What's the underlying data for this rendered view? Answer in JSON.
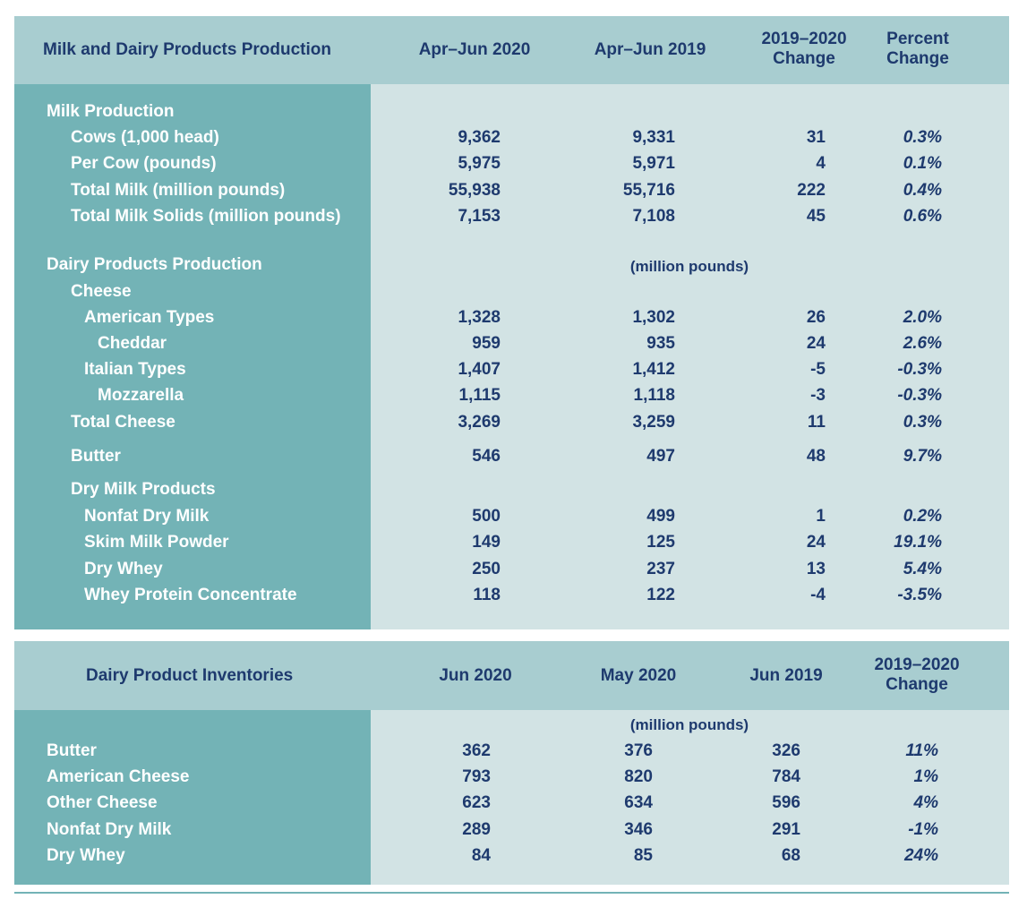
{
  "production": {
    "headers": {
      "title": "Milk and Dairy Products Production",
      "col1": "Apr–Jun 2020",
      "col2": "Apr–Jun 2019",
      "col3_line1": "2019–2020",
      "col3_line2": "Change",
      "col4_line1": "Percent",
      "col4_line2": "Change"
    },
    "milk_section": "Milk Production",
    "milk_rows": [
      {
        "label": "Cows (1,000 head)",
        "v2020": "9,362",
        "v2019": "9,331",
        "change": "31",
        "pct": "0.3%"
      },
      {
        "label": "Per Cow (pounds)",
        "v2020": "5,975",
        "v2019": "5,971",
        "change": "4",
        "pct": "0.1%"
      },
      {
        "label": "Total Milk (million pounds)",
        "v2020": "55,938",
        "v2019": "55,716",
        "change": "222",
        "pct": "0.4%"
      },
      {
        "label": "Total Milk Solids (million pounds)",
        "v2020": "7,153",
        "v2019": "7,108",
        "change": "45",
        "pct": "0.6%"
      }
    ],
    "dairy_section": "Dairy Products Production",
    "dairy_unit": "(million pounds)",
    "cheese_label": "Cheese",
    "cheese_rows": [
      {
        "label": "American Types",
        "v2020": "1,328",
        "v2019": "1,302",
        "change": "26",
        "pct": "2.0%"
      },
      {
        "label": "Cheddar",
        "v2020": "959",
        "v2019": "935",
        "change": "24",
        "pct": "2.6%"
      },
      {
        "label": "Italian Types",
        "v2020": "1,407",
        "v2019": "1,412",
        "change": "-5",
        "pct": "-0.3%"
      },
      {
        "label": "Mozzarella",
        "v2020": "1,115",
        "v2019": "1,118",
        "change": "-3",
        "pct": "-0.3%"
      },
      {
        "label": "Total Cheese",
        "v2020": "3,269",
        "v2019": "3,259",
        "change": "11",
        "pct": "0.3%"
      }
    ],
    "butter": {
      "label": "Butter",
      "v2020": "546",
      "v2019": "497",
      "change": "48",
      "pct": "9.7%"
    },
    "dry_label": "Dry Milk Products",
    "dry_rows": [
      {
        "label": "Nonfat Dry Milk",
        "v2020": "500",
        "v2019": "499",
        "change": "1",
        "pct": "0.2%"
      },
      {
        "label": "Skim Milk Powder",
        "v2020": "149",
        "v2019": "125",
        "change": "24",
        "pct": "19.1%"
      },
      {
        "label": "Dry Whey",
        "v2020": "250",
        "v2019": "237",
        "change": "13",
        "pct": "5.4%"
      },
      {
        "label": "Whey Protein Concentrate",
        "v2020": "118",
        "v2019": "122",
        "change": "-4",
        "pct": "-3.5%"
      }
    ]
  },
  "inventories": {
    "headers": {
      "title": "Dairy Product Inventories",
      "col1": "Jun 2020",
      "col2": "May 2020",
      "col3": "Jun 2019",
      "col4_line1": "2019–2020",
      "col4_line2": "Change"
    },
    "unit": "(million pounds)",
    "rows": [
      {
        "label": "Butter",
        "jun2020": "362",
        "may2020": "376",
        "jun2019": "326",
        "change": "11%"
      },
      {
        "label": "American Cheese",
        "jun2020": "793",
        "may2020": "820",
        "jun2019": "784",
        "change": "1%"
      },
      {
        "label": "Other Cheese",
        "jun2020": "623",
        "may2020": "634",
        "jun2019": "596",
        "change": "4%"
      },
      {
        "label": "Nonfat Dry Milk",
        "jun2020": "289",
        "may2020": "346",
        "jun2019": "291",
        "change": "-1%"
      },
      {
        "label": "Dry Whey",
        "jun2020": "84",
        "may2020": "85",
        "jun2019": "68",
        "change": "24%"
      }
    ]
  }
}
